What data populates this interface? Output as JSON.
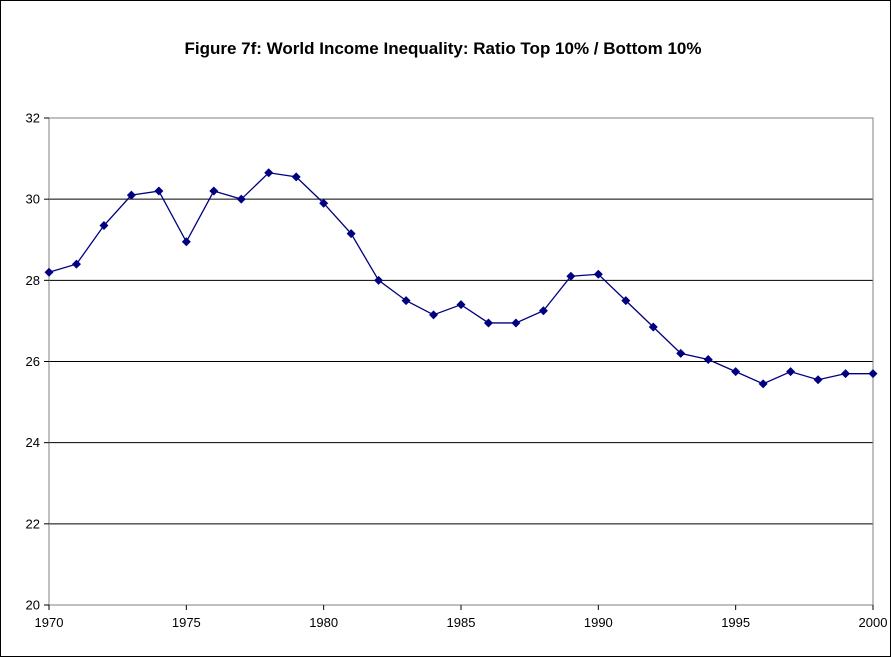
{
  "chart_data": {
    "type": "line",
    "title": "Figure 7f: World Income Inequality: Ratio Top 10% / Bottom 10%",
    "xlabel": "",
    "ylabel": "",
    "xlim": [
      1970,
      2000
    ],
    "ylim": [
      20,
      32
    ],
    "x_ticks": [
      1970,
      1975,
      1980,
      1985,
      1990,
      1995,
      2000
    ],
    "y_ticks": [
      20,
      22,
      24,
      26,
      28,
      30,
      32
    ],
    "grid": true,
    "legend": "none",
    "x": [
      1970,
      1971,
      1972,
      1973,
      1974,
      1975,
      1976,
      1977,
      1978,
      1979,
      1980,
      1981,
      1982,
      1983,
      1984,
      1985,
      1986,
      1987,
      1988,
      1989,
      1990,
      1991,
      1992,
      1993,
      1994,
      1995,
      1996,
      1997,
      1998,
      1999,
      2000
    ],
    "series": [
      {
        "values": [
          28.2,
          28.4,
          29.35,
          30.1,
          30.2,
          28.95,
          30.2,
          30.0,
          30.65,
          30.55,
          29.9,
          29.15,
          28.0,
          27.5,
          27.15,
          27.4,
          26.95,
          26.95,
          27.25,
          28.1,
          28.15,
          27.5,
          26.85,
          26.2,
          26.05,
          25.75,
          25.45,
          25.75,
          25.55,
          25.7,
          25.7
        ],
        "color": "#000080"
      }
    ],
    "colors": {
      "line": "#000080",
      "marker": "#000080",
      "grid": "#000000",
      "plot_background": "#ffffff"
    }
  }
}
